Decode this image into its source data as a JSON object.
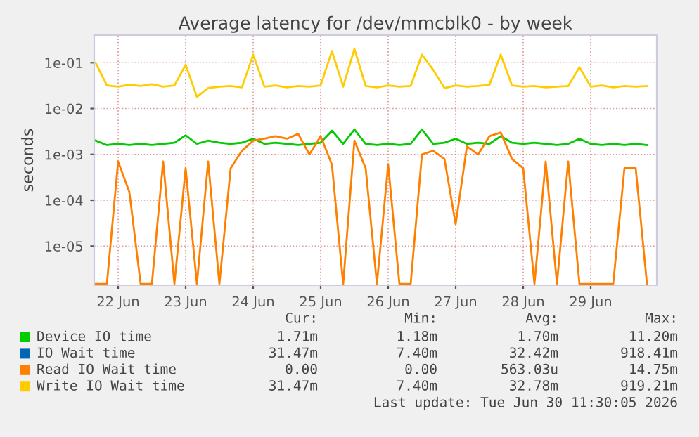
{
  "chart_data": {
    "type": "line",
    "title": "Average latency for /dev/mmcblk0 - by week",
    "ylabel": "seconds",
    "log": "y",
    "grid": true,
    "legend": "bottom",
    "marker": "none",
    "line_style": "solid",
    "xlim": [
      "2026-06-22T03:30",
      "2026-06-30T11:30"
    ],
    "xticks": [
      {
        "value": "2026-06-22T12:00",
        "label": "22 Jun"
      },
      {
        "value": "2026-06-23T12:00",
        "label": "23 Jun"
      },
      {
        "value": "2026-06-24T12:00",
        "label": "24 Jun"
      },
      {
        "value": "2026-06-25T12:00",
        "label": "25 Jun"
      },
      {
        "value": "2026-06-26T12:00",
        "label": "26 Jun"
      },
      {
        "value": "2026-06-27T12:00",
        "label": "27 Jun"
      },
      {
        "value": "2026-06-28T12:00",
        "label": "28 Jun"
      },
      {
        "value": "2026-06-29T12:00",
        "label": "29 Jun"
      }
    ],
    "ylim": [
      1.4e-06,
      0.4
    ],
    "yticks": [
      {
        "value": 1e-05,
        "label": "1e-05"
      },
      {
        "value": 0.0001,
        "label": "1e-04"
      },
      {
        "value": 0.001,
        "label": "1e-03"
      },
      {
        "value": 0.01,
        "label": "1e-02"
      },
      {
        "value": 0.1,
        "label": "1e-01"
      }
    ],
    "x": [
      "2026-06-22T04:00",
      "2026-06-22T08:00",
      "2026-06-22T12:00",
      "2026-06-22T16:00",
      "2026-06-22T20:00",
      "2026-06-23T00:00",
      "2026-06-23T04:00",
      "2026-06-23T08:00",
      "2026-06-23T12:00",
      "2026-06-23T16:00",
      "2026-06-23T20:00",
      "2026-06-24T00:00",
      "2026-06-24T04:00",
      "2026-06-24T08:00",
      "2026-06-24T12:00",
      "2026-06-24T16:00",
      "2026-06-24T20:00",
      "2026-06-25T00:00",
      "2026-06-25T04:00",
      "2026-06-25T08:00",
      "2026-06-25T12:00",
      "2026-06-25T16:00",
      "2026-06-25T20:00",
      "2026-06-26T00:00",
      "2026-06-26T04:00",
      "2026-06-26T08:00",
      "2026-06-26T12:00",
      "2026-06-26T16:00",
      "2026-06-26T20:00",
      "2026-06-27T00:00",
      "2026-06-27T04:00",
      "2026-06-27T08:00",
      "2026-06-27T12:00",
      "2026-06-27T16:00",
      "2026-06-27T20:00",
      "2026-06-28T00:00",
      "2026-06-28T04:00",
      "2026-06-28T08:00",
      "2026-06-28T12:00",
      "2026-06-28T16:00",
      "2026-06-28T20:00",
      "2026-06-29T00:00",
      "2026-06-29T04:00",
      "2026-06-29T08:00",
      "2026-06-29T12:00",
      "2026-06-29T16:00",
      "2026-06-29T20:00",
      "2026-06-30T00:00",
      "2026-06-30T04:00",
      "2026-06-30T08:00"
    ],
    "series": [
      {
        "name": "Device IO time",
        "color": "#00cc00",
        "values": [
          0.002,
          0.0016,
          0.0017,
          0.0016,
          0.0017,
          0.0016,
          0.0017,
          0.0018,
          0.0026,
          0.0017,
          0.002,
          0.0018,
          0.0017,
          0.0018,
          0.0022,
          0.0017,
          0.0018,
          0.0017,
          0.0016,
          0.0017,
          0.0018,
          0.0033,
          0.0017,
          0.0035,
          0.0017,
          0.0016,
          0.0017,
          0.0016,
          0.0017,
          0.0035,
          0.0017,
          0.0018,
          0.0022,
          0.0017,
          0.0018,
          0.0017,
          0.0025,
          0.0018,
          0.0017,
          0.0018,
          0.0017,
          0.0016,
          0.0017,
          0.0022,
          0.0017,
          0.0016,
          0.0017,
          0.0016,
          0.0017,
          0.0016
        ]
      },
      {
        "name": "IO Wait time",
        "color": "#0066b3",
        "values": [
          null,
          null,
          null,
          null,
          null,
          null,
          null,
          null,
          null,
          null,
          null,
          null,
          null,
          null,
          null,
          null,
          null,
          null,
          null,
          null,
          null,
          null,
          null,
          null,
          null,
          null,
          null,
          null,
          null,
          null,
          null,
          null,
          null,
          null,
          null,
          null,
          null,
          null,
          null,
          null,
          null,
          null,
          null,
          null,
          null,
          null,
          null,
          null,
          null,
          null
        ]
      },
      {
        "name": "Read IO Wait time",
        "color": "#ff8000",
        "values": [
          1.5e-06,
          1.5e-06,
          0.0007,
          0.00015,
          1.5e-06,
          1.5e-06,
          0.0007,
          1.5e-06,
          0.0005,
          1.5e-06,
          0.0007,
          1.5e-06,
          0.0005,
          0.0012,
          0.002,
          0.0022,
          0.0025,
          0.0022,
          0.0028,
          0.001,
          0.0025,
          0.0006,
          1.5e-06,
          0.002,
          0.0005,
          1.5e-06,
          0.0006,
          1.5e-06,
          1.5e-06,
          0.001,
          0.0012,
          0.0008,
          3e-05,
          0.0015,
          0.001,
          0.0025,
          0.003,
          0.0008,
          0.0005,
          1.5e-06,
          0.0007,
          1.5e-06,
          0.0007,
          1.5e-06,
          1.5e-06,
          1.5e-06,
          1.5e-06,
          0.0005,
          0.0005,
          1.5e-06
        ]
      },
      {
        "name": "Write IO Wait time",
        "color": "#ffcc00",
        "values": [
          0.1,
          0.032,
          0.03,
          0.033,
          0.031,
          0.034,
          0.03,
          0.032,
          0.09,
          0.018,
          0.028,
          0.03,
          0.031,
          0.029,
          0.15,
          0.03,
          0.032,
          0.029,
          0.031,
          0.03,
          0.032,
          0.18,
          0.03,
          0.2,
          0.031,
          0.029,
          0.032,
          0.03,
          0.031,
          0.15,
          0.07,
          0.028,
          0.032,
          0.03,
          0.031,
          0.033,
          0.15,
          0.032,
          0.03,
          0.031,
          0.029,
          0.03,
          0.031,
          0.08,
          0.03,
          0.032,
          0.029,
          0.031,
          0.03,
          0.031
        ]
      }
    ],
    "annotations": [
      "Cur:",
      "Min:",
      "Avg:",
      "Max:",
      "1.71m",
      "1.18m",
      "1.70m",
      "11.20m",
      "31.47m",
      "7.40m",
      "32.42m",
      "918.41m",
      "0.00",
      "0.00",
      "563.03u",
      "14.75m",
      "31.47m",
      "7.40m",
      "32.78m",
      "919.21m",
      "Last update: Tue Jun 30 11:30:05 2026"
    ]
  }
}
